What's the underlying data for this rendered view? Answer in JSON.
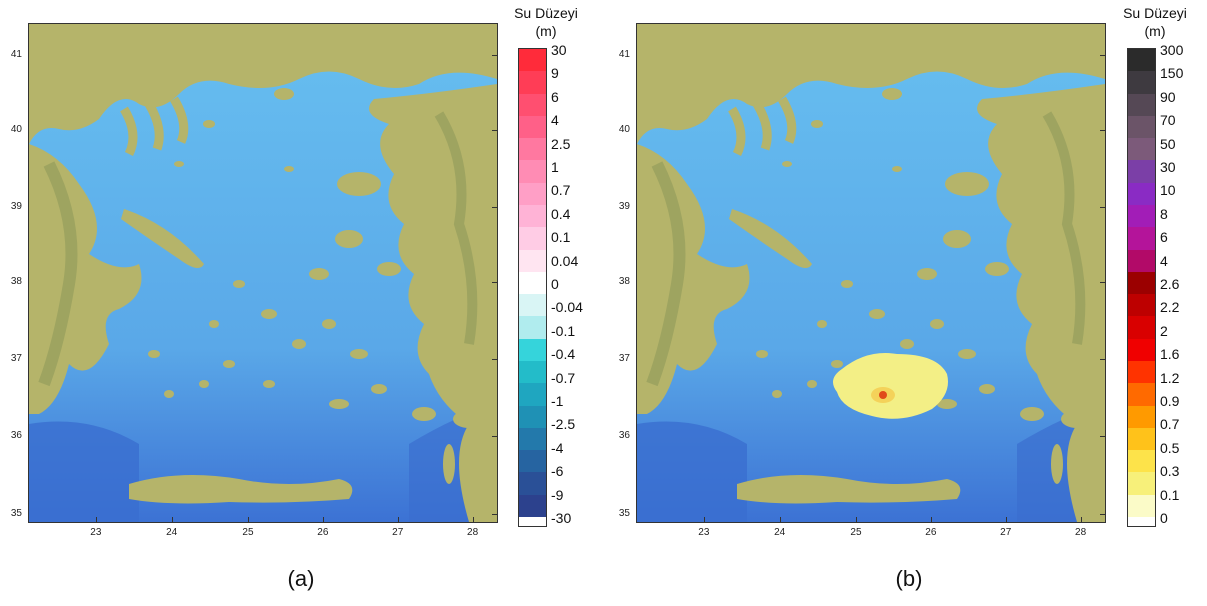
{
  "panels": [
    {
      "caption": "(a)",
      "legend": {
        "title_line1": "Su Düzeyi",
        "title_line2": "(m)",
        "labels": [
          "30",
          "9",
          "6",
          "4",
          "2.5",
          "1",
          "0.7",
          "0.4",
          "0.1",
          "0.04",
          "0",
          "-0.04",
          "-0.1",
          "-0.4",
          "-0.7",
          "-1",
          "-2.5",
          "-4",
          "-6",
          "-9",
          "-30"
        ],
        "colors": [
          "#ff2b3a",
          "#ff3d56",
          "#ff4f70",
          "#ff6088",
          "#ff78a0",
          "#ff8cb4",
          "#ff9fc6",
          "#ffb3d6",
          "#ffcce5",
          "#ffe5f1",
          "#ffffff",
          "#d9f5f5",
          "#b0ecee",
          "#35d4db",
          "#23bcc9",
          "#1fa6c0",
          "#1f91b5",
          "#2379ab",
          "#2664a1",
          "#2a5097",
          "#2c418d"
        ]
      },
      "x_ticks": [
        "23",
        "24",
        "25",
        "26",
        "27",
        "28"
      ],
      "y_ticks": [
        "41",
        "40",
        "39",
        "38",
        "37",
        "36",
        "35"
      ]
    },
    {
      "caption": "(b)",
      "legend": {
        "title_line1": "Su Düzeyi",
        "title_line2": "(m)",
        "labels": [
          "300",
          "150",
          "90",
          "70",
          "50",
          "30",
          "10",
          "8",
          "6",
          "4",
          "2.6",
          "2.2",
          "2",
          "1.6",
          "1.2",
          "0.9",
          "0.7",
          "0.5",
          "0.3",
          "0.1",
          "0"
        ],
        "colors": [
          "#2b2b2b",
          "#3e3a40",
          "#554855",
          "#6b5468",
          "#7c5a7a",
          "#7b3fa7",
          "#8a2bc4",
          "#a21db7",
          "#b4149a",
          "#b20a68",
          "#9b0000",
          "#bd0000",
          "#d90000",
          "#f00000",
          "#ff3300",
          "#ff6a00",
          "#ff9a00",
          "#ffc21a",
          "#fde34a",
          "#f7f07a",
          "#fbfbc8"
        ]
      },
      "x_ticks": [
        "23",
        "24",
        "25",
        "26",
        "27",
        "28"
      ],
      "y_ticks": [
        "41",
        "40",
        "39",
        "38",
        "37",
        "36",
        "35"
      ]
    }
  ]
}
